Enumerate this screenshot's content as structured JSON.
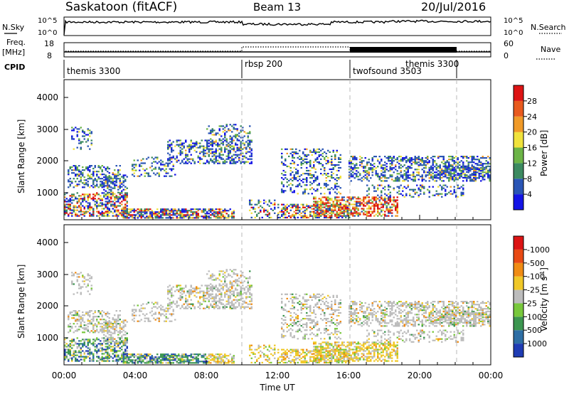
{
  "header": {
    "station": "Saskatoon (fitACF)",
    "beam": "Beam 13",
    "date": "20/Jul/2016"
  },
  "top_panels": {
    "nsky_label": "N.Sky",
    "nsky_ticks": [
      "10^5",
      "10^0"
    ],
    "nsearch_label": "N.Search",
    "nsearch_ticks": [
      "10^5",
      "10^0"
    ],
    "freq_label": "Freq.",
    "freq_unit": "[MHz]",
    "freq_ticks": [
      "18",
      "8"
    ],
    "nave_label": "Nave",
    "nave_ticks": [
      "60",
      "0"
    ],
    "cpid_label": "CPID",
    "cpid_segments": [
      {
        "label": "themis 3300",
        "start": 0,
        "end": 10
      },
      {
        "label": "rbsp 200",
        "start": 10,
        "end": 16
      },
      {
        "label": "twofsound 3503",
        "start": 16,
        "end": 22
      },
      {
        "label": "themis 3300",
        "start": 22,
        "end": 24
      }
    ]
  },
  "chart_data": [
    {
      "type": "heatmap",
      "ylabel": "Slant Range [km]",
      "yticks": [
        "1000",
        "2000",
        "3000",
        "4000"
      ],
      "ylim": [
        200,
        4600
      ],
      "xlim": [
        0,
        24
      ],
      "colorbar_label": "Power [dB]",
      "colorbar_ticks": [
        "4",
        "8",
        "12",
        "16",
        "20",
        "24",
        "28"
      ],
      "colors": [
        "#1414e6",
        "#2a55b5",
        "#3c8a60",
        "#6cb447",
        "#f0e23c",
        "#f09a28",
        "#e85a1e",
        "#dd1414"
      ]
    },
    {
      "type": "heatmap",
      "ylabel": "Slant Range [km]",
      "yticks": [
        "1000",
        "2000",
        "3000",
        "4000"
      ],
      "ylim": [
        200,
        4600
      ],
      "xlim": [
        0,
        24
      ],
      "xlabel": "Time UT",
      "xticks": [
        "00:00",
        "04:00",
        "08:00",
        "12:00",
        "16:00",
        "20:00",
        "00:00"
      ],
      "colorbar_label": "Velocity [m s",
      "colorbar_unit_exp": "-1",
      "colorbar_ticks": [
        "1000",
        "500",
        "100",
        "25",
        "-25",
        "-100",
        "-500",
        "-1000"
      ],
      "colors": [
        "#1f3cb4",
        "#2e6ea4",
        "#3c9650",
        "#78c83c",
        "#bcbcbc",
        "#f0c828",
        "#f08c14",
        "#e84a14",
        "#dc1414"
      ]
    }
  ]
}
